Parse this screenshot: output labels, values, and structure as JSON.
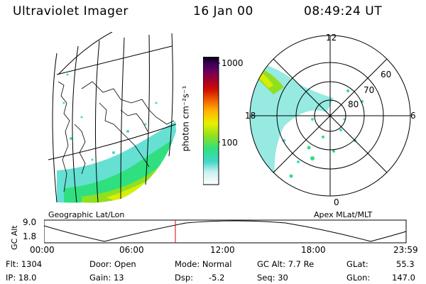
{
  "header": {
    "title": "Ultraviolet Imager",
    "date": "16 Jan 00",
    "time": "08:49:24 UT"
  },
  "geo_panel": {
    "caption": "Geographic Lat/Lon"
  },
  "apex_panel": {
    "caption": "Apex MLat/MLT",
    "mlt_labels": {
      "top": "12",
      "left": "18",
      "right": "6",
      "bottom": "0"
    },
    "lat_labels": [
      "60",
      "70",
      "80"
    ]
  },
  "colorbar": {
    "unit_label": "photon cm⁻²s⁻¹",
    "tick_labels": [
      "1000",
      "100"
    ],
    "colors": [
      "#ffffff",
      "#c8f0f0",
      "#40d8c8",
      "#30e080",
      "#90e020",
      "#e8f000",
      "#ffb000",
      "#f06000",
      "#d01000",
      "#a00030",
      "#600060",
      "#300050",
      "#000000"
    ]
  },
  "altitude_strip": {
    "axis_label": "GC Alt",
    "y_ticks": [
      "9.0",
      "1.8"
    ],
    "x_ticks": [
      "00:00",
      "06:00",
      "12:00",
      "18:00",
      "23:59"
    ],
    "marker_color": "#e00000"
  },
  "info": {
    "flt": "Flt: 1304",
    "ip": "IP: 18.0",
    "door": "Door: Open",
    "gain": "Gain: 13",
    "mode": "Mode: Normal",
    "dsp": "Dsp:",
    "dsp_value": "-5.2",
    "gc_alt": "GC Alt: 7.7 Re",
    "seq": "Seq: 30",
    "glat": "GLat:",
    "glat_value": "55.3",
    "glon": "GLon:",
    "glon_value": "147.0"
  }
}
